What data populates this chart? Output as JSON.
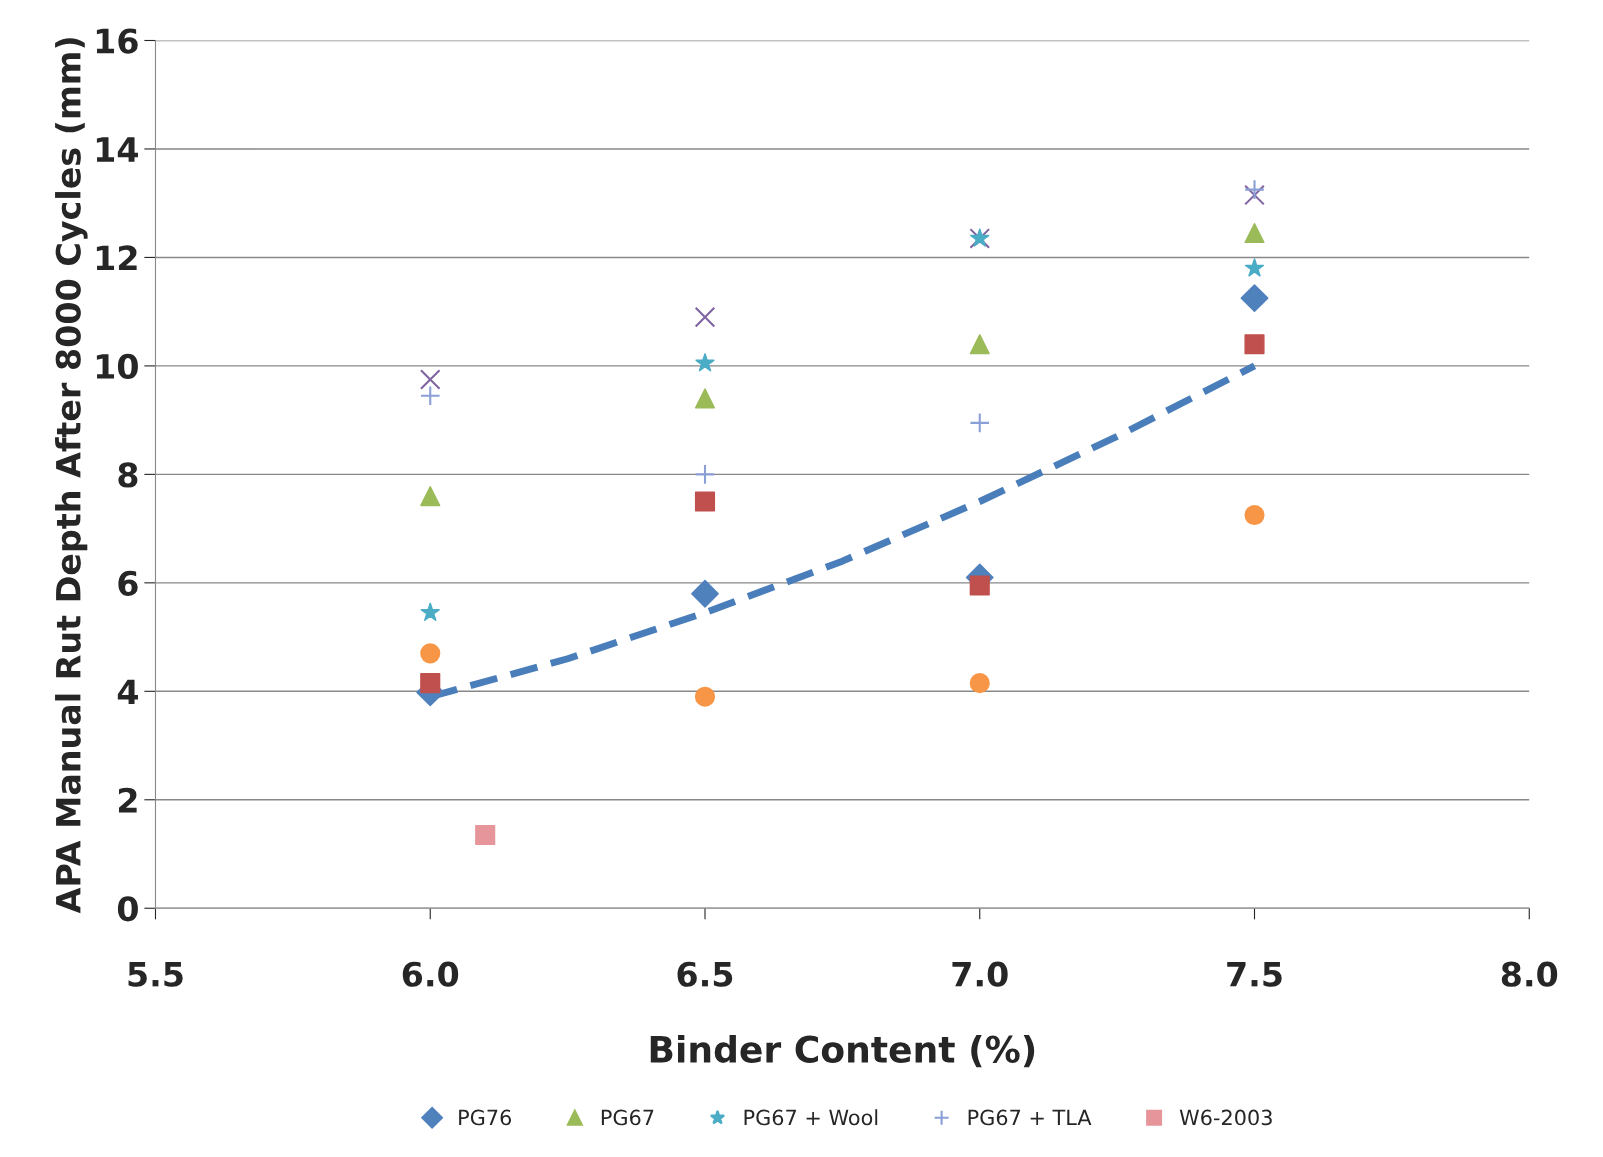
{
  "chart_data": {
    "type": "scatter",
    "xlabel": "Binder Content (%)",
    "ylabel": "APA Manual Rut Depth After 8000 Cycles (mm)",
    "x": [
      6.0,
      6.5,
      7.0,
      7.5
    ],
    "series": [
      {
        "name": "PG76",
        "color": "#4f81bd",
        "marker": "diamond",
        "values": [
          3.98,
          5.8,
          6.1,
          11.25
        ]
      },
      {
        "color": "#c0504d",
        "marker": "square",
        "values": [
          4.15,
          7.5,
          5.95,
          10.4
        ]
      },
      {
        "name": "PG67",
        "color": "#9bbb59",
        "marker": "triangle",
        "values": [
          7.6,
          9.4,
          10.4,
          12.45
        ]
      },
      {
        "color": "#8064a2",
        "marker": "cross",
        "values": [
          9.75,
          10.9,
          12.35,
          13.15
        ]
      },
      {
        "name": "PG67 + Wool",
        "color": "#4bacc6",
        "marker": "star",
        "values": [
          5.45,
          10.05,
          12.35,
          11.8
        ]
      },
      {
        "color": "#f79646",
        "marker": "circle",
        "values": [
          4.7,
          3.9,
          4.15,
          7.25
        ]
      },
      {
        "name": "PG67 + TLA",
        "color": "#8a9fd6",
        "marker": "plus",
        "values": [
          9.45,
          8.0,
          8.95,
          13.25
        ]
      },
      {
        "name": "W6-2003",
        "color": "#e6959a",
        "marker": "square",
        "x": [
          6.1
        ],
        "values": [
          1.35
        ]
      },
      {
        "type": "line",
        "color": "#4a7ebb",
        "line_style": "dashed",
        "marker": "none",
        "x": [
          6.0,
          6.25,
          6.5,
          6.75,
          7.0,
          7.25,
          7.5
        ],
        "values": [
          3.9,
          4.6,
          5.45,
          6.4,
          7.5,
          8.7,
          10.0
        ]
      }
    ],
    "xlim": [
      5.5,
      8.0
    ],
    "xticks": [
      {
        "value": 5.5,
        "label": "5.5"
      },
      {
        "value": 6.0,
        "label": "6.0"
      },
      {
        "value": 6.5,
        "label": "6.5"
      },
      {
        "value": 7.0,
        "label": "7.0"
      },
      {
        "value": 7.5,
        "label": "7.5"
      },
      {
        "value": 8.0,
        "label": "8.0"
      }
    ],
    "ylim": [
      0,
      16
    ],
    "yticks": [
      0,
      2,
      4,
      6,
      8,
      10,
      12,
      14,
      16
    ],
    "grid": "y",
    "legend": "bottom"
  }
}
